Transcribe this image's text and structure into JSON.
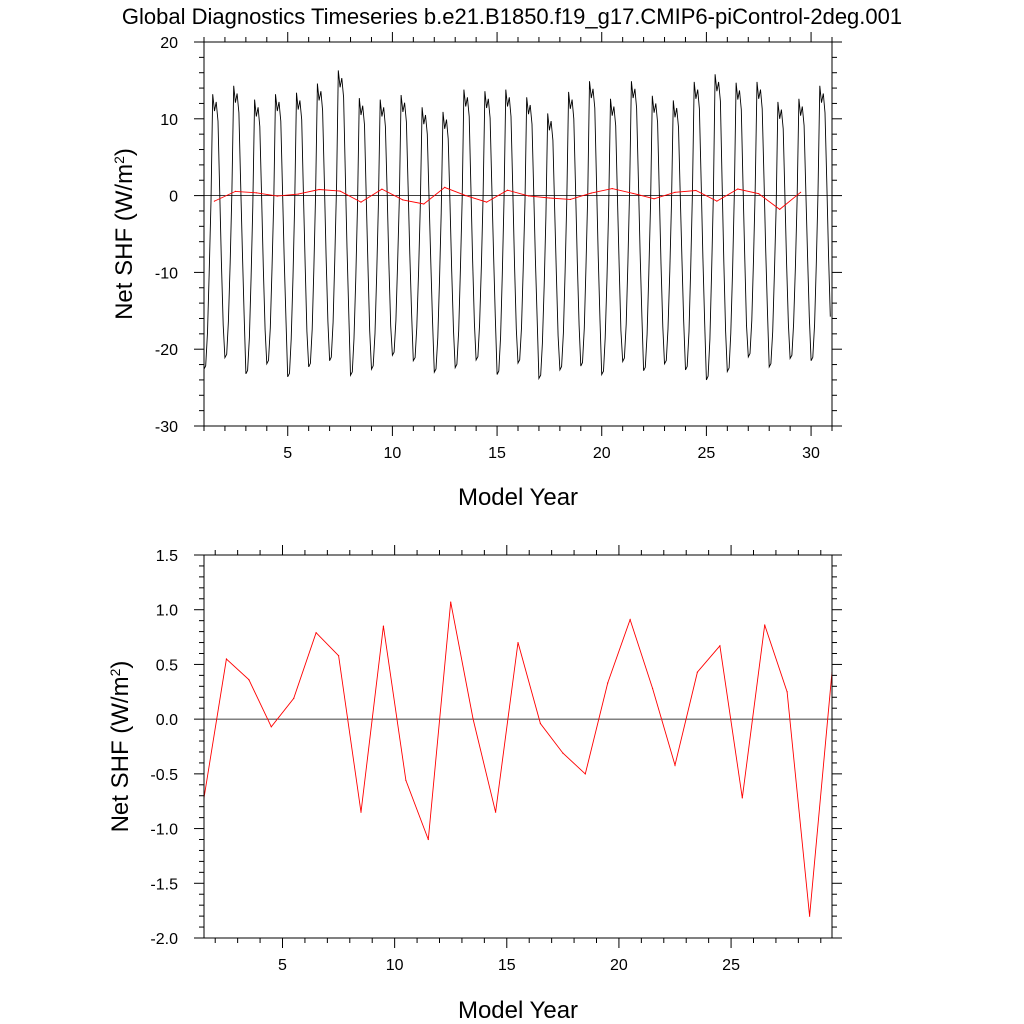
{
  "title": "Global Diagnostics Timeseries b.e21.B1850.f19_g17.CMIP6-piControl-2deg.001",
  "colors": {
    "monthly": "#000000",
    "annual": "#ff0000",
    "zero_line": "#000000"
  },
  "chart_data": [
    {
      "type": "line",
      "xlabel": "Model Year",
      "ylabel": "Net SHF (W/m²)",
      "xlim": [
        1,
        31
      ],
      "ylim": [
        -30,
        20
      ],
      "xticks": [
        5,
        10,
        15,
        20,
        25,
        30
      ],
      "yticks": [
        -30,
        -20,
        -10,
        0,
        10,
        20
      ],
      "xticklabels": [
        "5",
        "10",
        "15",
        "20",
        "25",
        "30"
      ],
      "yticklabels": [
        "-30",
        "-20",
        "-10",
        "0",
        "10",
        "20"
      ],
      "series": [
        {
          "name": "",
          "style": "monthly-seasonal-cycle",
          "peaks": [
            13.2,
            14.3,
            12.5,
            13.2,
            13.4,
            14.6,
            16.3,
            12.7,
            12.5,
            13.1,
            11.5,
            10.9,
            13.8,
            13.6,
            13.8,
            12.8,
            10.7,
            13.5,
            14.9,
            12.6,
            14.9,
            13.0,
            12.4,
            14.8,
            15.8,
            14.7,
            14.8,
            12.2,
            12.6,
            14.3
          ],
          "troughs": [
            -22.6,
            -21.1,
            -23.2,
            -21.9,
            -23.6,
            -22.3,
            -21.5,
            -23.4,
            -22.6,
            -20.8,
            -21.5,
            -23.0,
            -22.4,
            -21.4,
            -23.3,
            -21.8,
            -23.8,
            -22.7,
            -22.2,
            -23.3,
            -21.6,
            -22.8,
            -21.9,
            -22.7,
            -24.0,
            -22.9,
            -21.0,
            -22.3,
            -21.2,
            -21.5
          ]
        },
        {
          "name": "",
          "style": "annual-mean",
          "x": [
            1.5,
            2.5,
            3.5,
            4.5,
            5.5,
            6.5,
            7.5,
            8.5,
            9.5,
            10.5,
            11.5,
            12.5,
            13.5,
            14.5,
            15.5,
            16.5,
            17.5,
            18.5,
            19.5,
            20.5,
            21.5,
            22.5,
            23.5,
            24.5,
            25.5,
            26.5,
            27.5,
            28.5,
            29.5
          ],
          "values": [
            -0.72,
            0.55,
            0.36,
            -0.07,
            0.19,
            0.79,
            0.58,
            -0.85,
            0.85,
            -0.56,
            -1.1,
            1.07,
            0.0,
            -0.85,
            0.7,
            -0.04,
            -0.31,
            -0.5,
            0.33,
            0.91,
            0.28,
            -0.42,
            0.43,
            0.67,
            -0.72,
            0.86,
            0.25,
            -1.8,
            0.43
          ]
        }
      ]
    },
    {
      "type": "line",
      "xlabel": "Model Year",
      "ylabel": "Net SHF (W/m²)",
      "xlim": [
        1.5,
        29.5
      ],
      "ylim": [
        -2.0,
        1.5
      ],
      "xticks": [
        5,
        10,
        15,
        20,
        25
      ],
      "yticks": [
        -2.0,
        -1.5,
        -1.0,
        -0.5,
        0.0,
        0.5,
        1.0,
        1.5
      ],
      "xticklabels": [
        "5",
        "10",
        "15",
        "20",
        "25"
      ],
      "yticklabels": [
        "-2.0",
        "-1.5",
        "-1.0",
        "-0.5",
        "0.0",
        "0.5",
        "1.0",
        "1.5"
      ],
      "series": [
        {
          "name": "",
          "style": "annual-mean",
          "x": [
            1.5,
            2.5,
            3.5,
            4.5,
            5.5,
            6.5,
            7.5,
            8.5,
            9.5,
            10.5,
            11.5,
            12.5,
            13.5,
            14.5,
            15.5,
            16.5,
            17.5,
            18.5,
            19.5,
            20.5,
            21.5,
            22.5,
            23.5,
            24.5,
            25.5,
            26.5,
            27.5,
            28.5,
            29.5
          ],
          "values": [
            -0.72,
            0.55,
            0.36,
            -0.07,
            0.19,
            0.79,
            0.58,
            -0.85,
            0.85,
            -0.56,
            -1.1,
            1.07,
            0.0,
            -0.85,
            0.7,
            -0.04,
            -0.31,
            -0.5,
            0.33,
            0.91,
            0.28,
            -0.42,
            0.43,
            0.67,
            -0.72,
            0.86,
            0.25,
            -1.8,
            0.43
          ]
        }
      ]
    }
  ]
}
